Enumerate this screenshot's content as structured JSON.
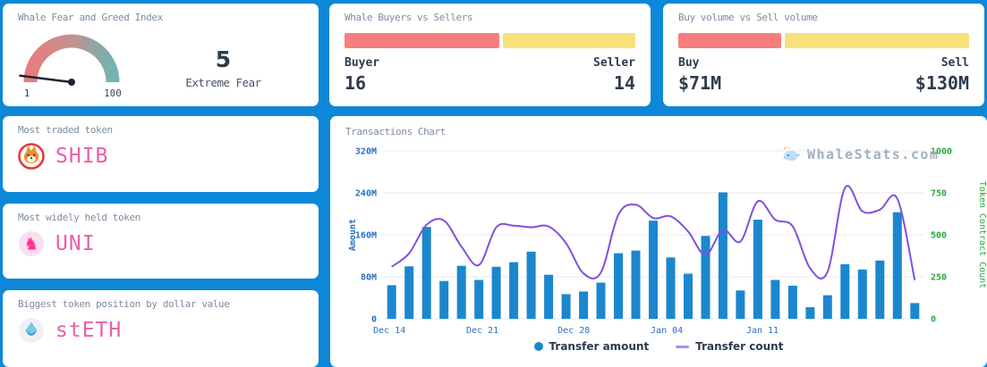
{
  "theme": {
    "background": "#0d88d8",
    "card": "#ffffff",
    "bar_blue": "#1b87ce",
    "line_purple": "#8050e0",
    "buyer_red": "#f87e7d",
    "seller_yellow": "#f8e17a",
    "axis_left_blue": "#2a6fc0",
    "axis_right_green": "#27a83b",
    "token_pink": "#e85fa8",
    "grid_gray": "#e9e9ec",
    "gauge_red": "#e97c7c",
    "gauge_teal": "#72b4b1"
  },
  "cards": {
    "fear_greed": {
      "title": "Whale Fear and Greed Index",
      "value": "5",
      "status": "Extreme Fear",
      "scale_min": "1",
      "scale_max": "100"
    },
    "buyers_sellers": {
      "title": "Whale Buyers vs Sellers",
      "left_label": "Buyer",
      "right_label": "Seller",
      "left_value": "16",
      "right_value": "14",
      "left_num": 16,
      "right_num": 14
    },
    "volume": {
      "title": "Buy volume vs Sell volume",
      "left_label": "Buy",
      "right_label": "Sell",
      "left_value": "$71M",
      "right_value": "$130M",
      "left_num": 71,
      "right_num": 130
    },
    "most_traded": {
      "title": "Most traded token",
      "token": "SHIB"
    },
    "most_held": {
      "title": "Most widely held token",
      "token": "UNI"
    },
    "biggest_position": {
      "title": "Biggest token position by dollar value",
      "token": "stETH"
    }
  },
  "chart": {
    "title": "Transactions Chart",
    "watermark": "WhaleStats.com"
  },
  "chart_data": {
    "type": "bar+line",
    "title": "Transactions Chart",
    "x": [
      "Dec 14",
      "Dec 15",
      "Dec 16",
      "Dec 17",
      "Dec 18",
      "Dec 19",
      "Dec 20",
      "Dec 21",
      "Dec 22",
      "Dec 23",
      "Dec 24",
      "Dec 25",
      "Dec 26",
      "Dec 27",
      "Dec 28",
      "Dec 29",
      "Dec 30",
      "Dec 31",
      "Jan 01",
      "Jan 02",
      "Jan 03",
      "Jan 04",
      "Jan 05",
      "Jan 06",
      "Jan 07",
      "Jan 08",
      "Jan 09",
      "Jan 10",
      "Jan 11",
      "Jan 12",
      "Jan 13"
    ],
    "x_tick_labels": [
      "Dec 14",
      "Dec 21",
      "Dec 28",
      "Jan 04",
      "Jan 11"
    ],
    "series": [
      {
        "name": "Transfer amount",
        "type": "bar",
        "axis": "left",
        "unit": "M",
        "values": [
          64,
          100,
          175,
          72,
          101,
          74,
          99,
          108,
          128,
          84,
          47,
          52,
          69,
          125,
          130,
          187,
          117,
          86,
          158,
          241,
          54,
          189,
          74,
          63,
          22,
          45,
          104,
          94,
          111,
          203,
          30
        ]
      },
      {
        "name": "Transfer count",
        "type": "line",
        "axis": "right",
        "values": [
          310,
          390,
          560,
          585,
          430,
          320,
          545,
          555,
          545,
          550,
          450,
          270,
          275,
          620,
          680,
          600,
          610,
          520,
          380,
          530,
          460,
          700,
          590,
          550,
          300,
          280,
          780,
          640,
          650,
          715,
          230
        ]
      }
    ],
    "left_axis": {
      "label": "Amount",
      "max_value_millions": 320,
      "ticks": [
        "320M",
        "240M",
        "160M",
        "80M",
        "0"
      ]
    },
    "right_axis": {
      "label": "Token Contract Count",
      "max_value": 1000,
      "ticks": [
        "1000",
        "750",
        "500",
        "250",
        "0"
      ]
    },
    "grid": true,
    "legend_position": "bottom"
  }
}
